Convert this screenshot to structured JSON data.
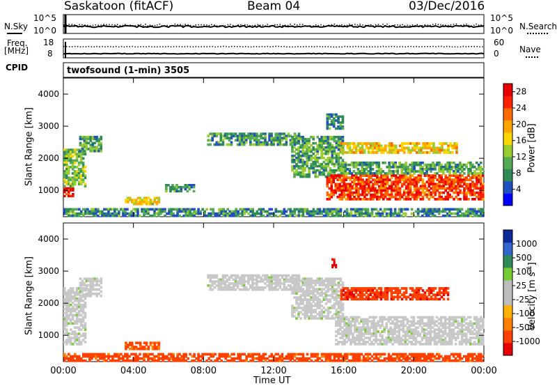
{
  "header": {
    "station": "Saskatoon (fitACF)",
    "beam": "Beam 04",
    "date": "03/Dec/2016"
  },
  "status_panels": {
    "nsky": {
      "label": "N.Sky",
      "ticks": [
        "10^5",
        "10^0"
      ]
    },
    "nsearch": {
      "label": "N.Search",
      "ticks": [
        "10^5",
        "10^0"
      ]
    },
    "freq": {
      "label_line1": "Freq.",
      "label_line2": "[MHz]",
      "ticks": [
        "18",
        "8"
      ]
    },
    "nave": {
      "label": "Nave",
      "ticks": [
        "60",
        "0"
      ]
    },
    "cpid": {
      "label": "CPID",
      "program": "twofsound (1-min) 3505"
    }
  },
  "colors": {
    "power_scale": [
      "#0000ff",
      "#1f4fc0",
      "#2e8b57",
      "#55aa55",
      "#9acd32",
      "#ffd700",
      "#ffa500",
      "#ff6a00",
      "#ff2000",
      "#e60000"
    ],
    "velocity_scale": [
      "#0b2a9a",
      "#3366cc",
      "#2e8b57",
      "#77cc33",
      "#bdbdbd",
      "#bdbdbd",
      "#ffb300",
      "#ff8000",
      "#ff4000",
      "#e60000"
    ],
    "ground_scatter": "#c8c8c8"
  },
  "chart_data": [
    {
      "type": "heatmap",
      "title": "Power",
      "ylabel": "Slant Range [km]",
      "xlabel": "",
      "x_ticks": [
        "00:00",
        "04:00",
        "08:00",
        "12:00",
        "16:00",
        "20:00",
        "00:00"
      ],
      "x_range_hours": [
        0,
        24
      ],
      "y_ticks": [
        "1000",
        "2000",
        "3000",
        "4000"
      ],
      "y_range_km": [
        180,
        4500
      ],
      "colorbar": {
        "label": "Power [dB]",
        "ticks": [
          "4",
          "8",
          "12",
          "16",
          "20",
          "24",
          "28"
        ],
        "range": [
          0,
          30
        ]
      },
      "regions": [
        {
          "t0": 0.0,
          "t1": 0.6,
          "r0": 800,
          "r1": 1100,
          "value": 26
        },
        {
          "t0": 0.0,
          "t1": 1.3,
          "r0": 1100,
          "r1": 2300,
          "value": 12
        },
        {
          "t0": 0.9,
          "t1": 2.2,
          "r0": 2200,
          "r1": 2700,
          "value": 10
        },
        {
          "t0": 3.5,
          "t1": 5.5,
          "r0": 550,
          "r1": 800,
          "value": 16
        },
        {
          "t0": 5.8,
          "t1": 7.5,
          "r0": 950,
          "r1": 1200,
          "value": 9
        },
        {
          "t0": 8.2,
          "t1": 13.5,
          "r0": 2400,
          "r1": 2800,
          "value": 9
        },
        {
          "t0": 13.0,
          "t1": 16.0,
          "r0": 1400,
          "r1": 2700,
          "value": 10
        },
        {
          "t0": 15.0,
          "t1": 24.0,
          "r0": 700,
          "r1": 1500,
          "value": 25
        },
        {
          "t0": 15.8,
          "t1": 24.0,
          "r0": 1500,
          "r1": 1900,
          "value": 10
        },
        {
          "t0": 15.8,
          "t1": 22.5,
          "r0": 2150,
          "r1": 2500,
          "value": 17
        },
        {
          "t0": 0.0,
          "t1": 24.0,
          "r0": 180,
          "r1": 450,
          "value": 8
        },
        {
          "t0": 15.0,
          "t1": 16.0,
          "r0": 2900,
          "r1": 3400,
          "value": 8
        }
      ]
    },
    {
      "type": "heatmap",
      "title": "Velocity",
      "ylabel": "Slant Range [km]",
      "xlabel": "Time UT",
      "x_ticks": [
        "00:00",
        "04:00",
        "08:00",
        "12:00",
        "16:00",
        "20:00",
        "00:00"
      ],
      "x_range_hours": [
        0,
        24
      ],
      "y_ticks": [
        "1000",
        "2000",
        "3000",
        "4000"
      ],
      "y_range_km": [
        180,
        4500
      ],
      "colorbar": {
        "label": "Velocity [m s^-1]",
        "ticks": [
          "1000",
          "500",
          "100",
          "25",
          "-25",
          "-100",
          "-500",
          "-1000"
        ]
      },
      "regions": [
        {
          "t0": 0.0,
          "t1": 1.3,
          "r0": 700,
          "r1": 2500,
          "value": "ground"
        },
        {
          "t0": 0.9,
          "t1": 2.2,
          "r0": 2200,
          "r1": 2800,
          "value": "ground"
        },
        {
          "t0": 3.5,
          "t1": 5.5,
          "r0": 550,
          "r1": 800,
          "value": -120
        },
        {
          "t0": 8.2,
          "t1": 13.5,
          "r0": 2400,
          "r1": 2900,
          "value": "ground"
        },
        {
          "t0": 13.0,
          "t1": 16.0,
          "r0": 1500,
          "r1": 2800,
          "value": "ground"
        },
        {
          "t0": 15.5,
          "t1": 24.0,
          "r0": 700,
          "r1": 1600,
          "value": "ground"
        },
        {
          "t0": 15.8,
          "t1": 22.0,
          "r0": 2100,
          "r1": 2500,
          "value": -400
        },
        {
          "t0": 0.0,
          "t1": 24.0,
          "r0": 180,
          "r1": 450,
          "value": -150
        },
        {
          "t0": 15.3,
          "t1": 15.6,
          "r0": 3100,
          "r1": 3400,
          "value": -600
        }
      ]
    }
  ]
}
